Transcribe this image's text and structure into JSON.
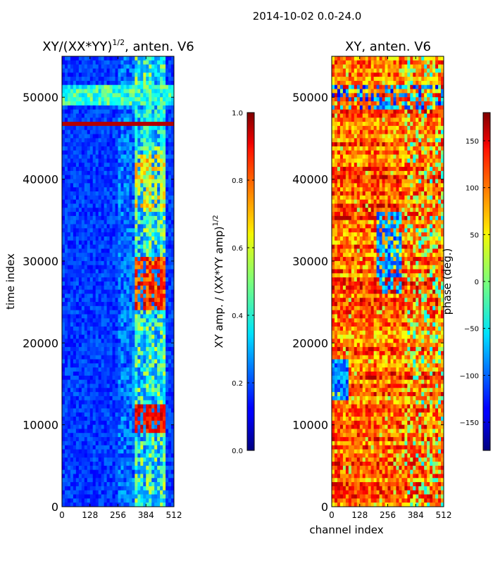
{
  "figure": {
    "suptitle": "2014-10-02 0.0-24.0"
  },
  "chart_data": [
    {
      "type": "heatmap",
      "title_main": "XY/(XX*YY)",
      "title_exp": "1/2",
      "title_tail": ", anten. V6",
      "xlabel": "",
      "ylabel": "time index",
      "xlim": [
        0,
        512
      ],
      "ylim": [
        0,
        55000
      ],
      "xticks": [
        0,
        128,
        256,
        384,
        512
      ],
      "yticks": [
        0,
        10000,
        20000,
        30000,
        40000,
        50000
      ],
      "colorbar": {
        "label_main": "XY amp. / (XX*YY amp)",
        "label_exp": "1/2",
        "vmin": 0.0,
        "vmax": 1.0,
        "ticks": [
          "0.0",
          "0.2",
          "0.4",
          "0.6",
          "0.8",
          "1.0"
        ],
        "colormap": "jet"
      }
    },
    {
      "type": "heatmap",
      "title": "XY, anten. V6",
      "xlabel": "channel index",
      "ylabel": "",
      "xlim": [
        0,
        512
      ],
      "ylim": [
        0,
        55000
      ],
      "xticks": [
        0,
        128,
        256,
        384,
        512
      ],
      "yticks": [
        0,
        10000,
        20000,
        30000,
        40000,
        50000
      ],
      "colorbar": {
        "label": "phase (deg.)",
        "vmin": -180,
        "vmax": 180,
        "ticks": [
          "−150",
          "−100",
          "−50",
          "0",
          "50",
          "100",
          "150"
        ],
        "tick_values": [
          -150,
          -100,
          -50,
          0,
          50,
          100,
          150
        ],
        "colormap": "jet"
      }
    }
  ]
}
